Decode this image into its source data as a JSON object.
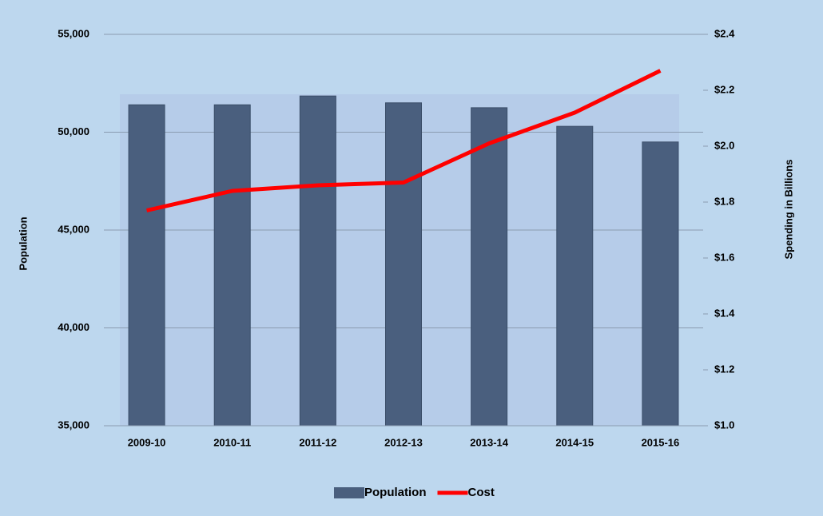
{
  "chart_data": {
    "type": "bar-line",
    "categories": [
      "2009-10",
      "2010-11",
      "2011-12",
      "2012-13",
      "2013-14",
      "2014-15",
      "2015-16"
    ],
    "series": [
      {
        "name": "Population",
        "type": "bar",
        "color": "#4a5f7e",
        "values": [
          51400,
          51400,
          51850,
          51500,
          51250,
          50300,
          49500
        ]
      },
      {
        "name": "Cost",
        "type": "line",
        "axis": "y2",
        "color": "#ff0000",
        "values": [
          1.77,
          1.84,
          1.86,
          1.87,
          2.01,
          2.12,
          2.27
        ]
      }
    ],
    "ylabel": "Population",
    "y2label": "Spending in Billions",
    "ylim": [
      35000,
      55000
    ],
    "yticks": [
      {
        "value": 35000,
        "label": "35,000"
      },
      {
        "value": 40000,
        "label": "40,000"
      },
      {
        "value": 45000,
        "label": "45,000"
      },
      {
        "value": 50000,
        "label": "50,000"
      },
      {
        "value": 55000,
        "label": "55,000"
      }
    ],
    "y2lim": [
      1.0,
      2.4
    ],
    "y2ticks": [
      {
        "value": 1.0,
        "label": "$1.0"
      },
      {
        "value": 1.2,
        "label": "$1.2"
      },
      {
        "value": 1.4,
        "label": "$1.4"
      },
      {
        "value": 1.6,
        "label": "$1.6"
      },
      {
        "value": 1.8,
        "label": "$1.8"
      },
      {
        "value": 2.0,
        "label": "$2.0"
      },
      {
        "value": 2.2,
        "label": "$2.2"
      },
      {
        "value": 2.4,
        "label": "$2.4"
      }
    ],
    "grid": true,
    "legend": "bottom"
  }
}
